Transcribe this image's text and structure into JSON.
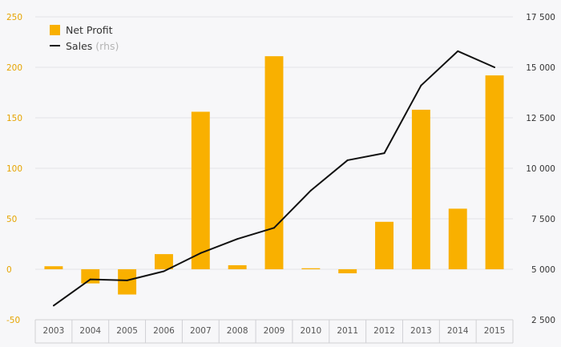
{
  "colors": {
    "bar": "#f9b000",
    "line": "#111111",
    "grid": "#e3e3e6",
    "axis_left": "#e6a400",
    "axis_right": "#333333",
    "xlabel": "#555555"
  },
  "legend": {
    "bar_label": "Net Profit",
    "line_label": "Sales",
    "line_note": "(rhs)"
  },
  "chart_data": {
    "type": "bar",
    "categories": [
      "2003",
      "2004",
      "2005",
      "2006",
      "2007",
      "2008",
      "2009",
      "2010",
      "2011",
      "2012",
      "2013",
      "2014",
      "2015"
    ],
    "series": [
      {
        "name": "Net Profit",
        "type": "bar",
        "axis": "left",
        "values": [
          3,
          -14,
          -25,
          15,
          156,
          4,
          211,
          1,
          -4,
          47,
          158,
          60,
          192
        ]
      },
      {
        "name": "Sales (rhs)",
        "type": "line",
        "axis": "right",
        "values": [
          3200,
          4500,
          4450,
          4900,
          5800,
          6500,
          7050,
          8900,
          10400,
          10750,
          14100,
          15800,
          15000
        ]
      }
    ],
    "ylim_left": [
      -50,
      250
    ],
    "yticks_left": [
      "-50",
      "0",
      "50",
      "100",
      "150",
      "200",
      "250"
    ],
    "ylim_right": [
      2500,
      17500
    ],
    "yticks_right": [
      "2 500",
      "5 000",
      "7 500",
      "10 000",
      "12 500",
      "15 000",
      "17 500"
    ],
    "grid": true,
    "legend_position": "top-left"
  }
}
